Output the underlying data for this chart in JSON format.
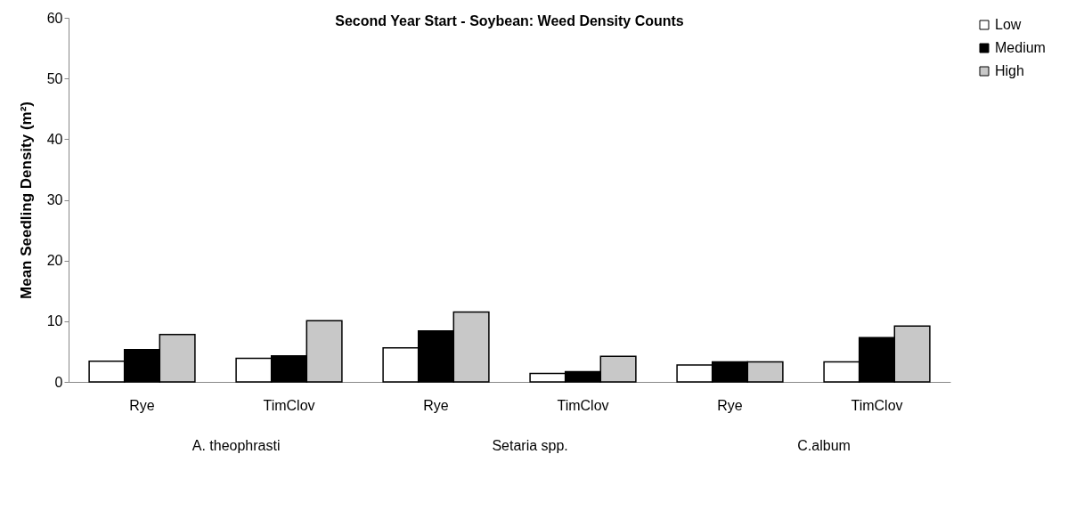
{
  "chart_data": {
    "type": "bar",
    "title": "Second Year Start - Soybean: Weed Density Counts",
    "ylabel": "Mean Seedling Density (m²)",
    "categories": [
      "Rye",
      "TimClov",
      "Rye",
      "TimClov",
      "Rye",
      "TimClov"
    ],
    "series": [
      {
        "name": "Low",
        "color": "#ffffff",
        "values": [
          3.4,
          3.9,
          5.6,
          1.4,
          2.8,
          3.3
        ]
      },
      {
        "name": "Medium",
        "color": "#000000",
        "values": [
          5.3,
          4.3,
          8.4,
          1.7,
          3.3,
          7.3
        ]
      },
      {
        "name": "High",
        "color": "#c8c8c8",
        "values": [
          7.8,
          10.1,
          11.5,
          4.2,
          3.3,
          9.2
        ]
      }
    ],
    "annotations": [
      "A. theophrasti",
      "Setaria spp.",
      "C.album"
    ],
    "ylim": [
      0,
      60
    ],
    "yticks": [
      0,
      10,
      20,
      30,
      40,
      50,
      60
    ],
    "grid": false,
    "legend": "top right"
  }
}
